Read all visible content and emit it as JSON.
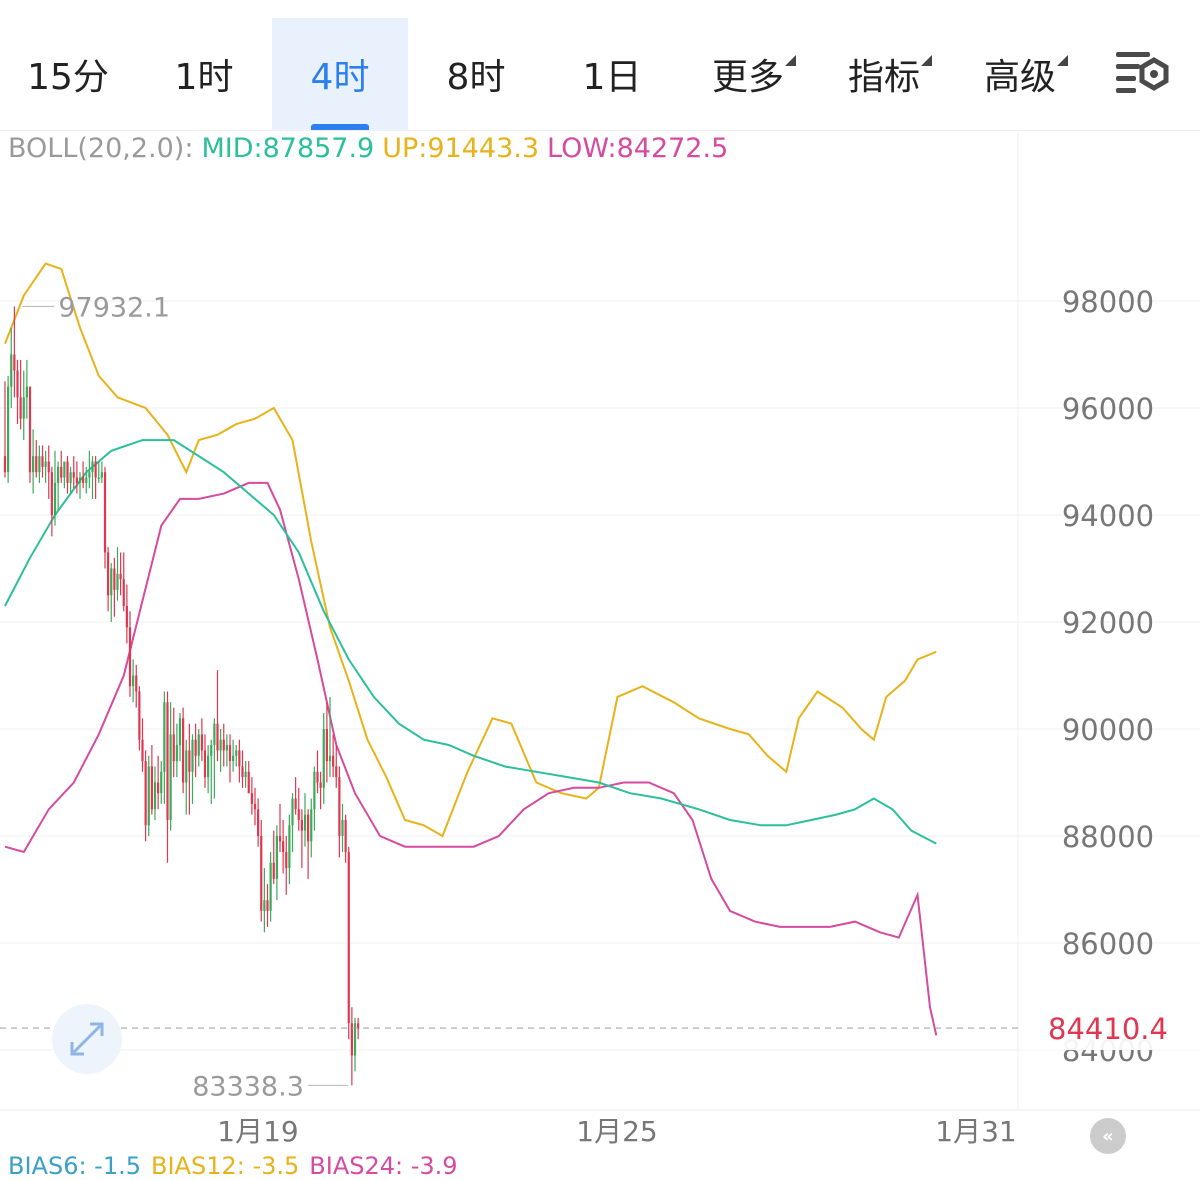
{
  "tabs": [
    {
      "label": "15分",
      "active": false,
      "dropdown": false
    },
    {
      "label": "1时",
      "active": false,
      "dropdown": false
    },
    {
      "label": "4时",
      "active": true,
      "dropdown": false
    },
    {
      "label": "8时",
      "active": false,
      "dropdown": false
    },
    {
      "label": "1日",
      "active": false,
      "dropdown": false
    },
    {
      "label": "更多",
      "active": false,
      "dropdown": true
    },
    {
      "label": "指标",
      "active": false,
      "dropdown": true
    },
    {
      "label": "高级",
      "active": false,
      "dropdown": true
    }
  ],
  "settings_icon": "chart-settings-icon",
  "legend": {
    "name": "BOLL(20,2.0):",
    "mid": "MID:87857.9",
    "up": "UP:91443.3",
    "low": "LOW:84272.5"
  },
  "bias": {
    "b6": "BIAS6: -1.5",
    "b12": "BIAS12: -3.5",
    "b24": "BIAS24: -3.9"
  },
  "colors": {
    "up": "#3aaa5c",
    "down": "#e0364f",
    "mid": "#2bbf9c",
    "upper": "#e8b21a",
    "lower": "#d64a9f",
    "accent": "#2d7ff0",
    "last_price": "#e0364f"
  },
  "chart_data": {
    "type": "candlestick",
    "indicator": "BOLL(20,2.0)",
    "ylim": [
      83000,
      100500
    ],
    "y_ticks": [
      "84000",
      "86000",
      "88000",
      "90000",
      "92000",
      "94000",
      "96000",
      "98000"
    ],
    "x_labels": [
      "1月19",
      "1月25",
      "1月31"
    ],
    "high_marker": "97932.1",
    "low_marker": "83338.3",
    "last_price": "84410.4",
    "last_price_value": 84410.4,
    "candles": [
      [
        95100,
        96500,
        94700,
        94800
      ],
      [
        94800,
        96600,
        94600,
        96400
      ],
      [
        96400,
        97500,
        96000,
        97000
      ],
      [
        97000,
        97900,
        96200,
        96700
      ],
      [
        96700,
        96900,
        95700,
        96200
      ],
      [
        96200,
        96900,
        95600,
        95800
      ],
      [
        95800,
        96700,
        95400,
        96200
      ],
      [
        96200,
        96900,
        95800,
        96400
      ],
      [
        96400,
        96400,
        94600,
        94800
      ],
      [
        94800,
        95600,
        94400,
        95100
      ],
      [
        95100,
        95400,
        94700,
        94800
      ],
      [
        94800,
        95300,
        94600,
        95100
      ],
      [
        95100,
        95300,
        94700,
        94900
      ],
      [
        94900,
        95200,
        94600,
        95000
      ],
      [
        95000,
        95300,
        94300,
        94800
      ],
      [
        94800,
        94900,
        93600,
        94000
      ],
      [
        94000,
        95200,
        93800,
        94600
      ],
      [
        94600,
        95000,
        94100,
        94900
      ],
      [
        94900,
        95200,
        94600,
        94700
      ],
      [
        94700,
        95000,
        94500,
        95000
      ],
      [
        95000,
        95100,
        94400,
        94600
      ],
      [
        94600,
        94900,
        94400,
        94800
      ],
      [
        94800,
        95100,
        94500,
        94700
      ],
      [
        94700,
        95000,
        94400,
        94600
      ],
      [
        94600,
        94800,
        94300,
        94700
      ],
      [
        94700,
        95000,
        94500,
        94600
      ],
      [
        94600,
        94900,
        94400,
        94700
      ],
      [
        94700,
        95200,
        94500,
        94800
      ],
      [
        94800,
        95100,
        94300,
        95000
      ],
      [
        95000,
        95100,
        94300,
        94700
      ],
      [
        94700,
        95000,
        94600,
        94700
      ],
      [
        94700,
        95000,
        94600,
        94800
      ],
      [
        94800,
        94900,
        93000,
        93300
      ],
      [
        93300,
        93400,
        92200,
        92500
      ],
      [
        92500,
        93100,
        92000,
        93000
      ],
      [
        93000,
        93200,
        92100,
        92600
      ],
      [
        92600,
        93400,
        92400,
        92900
      ],
      [
        92900,
        93300,
        92500,
        92800
      ],
      [
        92800,
        93300,
        92200,
        92300
      ],
      [
        92300,
        92700,
        91600,
        91900
      ],
      [
        91900,
        92200,
        90600,
        90800
      ],
      [
        90800,
        91300,
        90500,
        91000
      ],
      [
        91000,
        91200,
        90400,
        90700
      ],
      [
        90700,
        90800,
        89600,
        89800
      ],
      [
        89800,
        90200,
        89200,
        89400
      ],
      [
        89400,
        89600,
        87900,
        88200
      ],
      [
        88200,
        89500,
        88000,
        89300
      ],
      [
        89300,
        89700,
        88400,
        88500
      ],
      [
        88500,
        89300,
        88300,
        89000
      ],
      [
        89000,
        89500,
        88500,
        88800
      ],
      [
        88800,
        89400,
        88600,
        89200
      ],
      [
        89200,
        90700,
        88600,
        90500
      ],
      [
        90500,
        90700,
        87500,
        88300
      ],
      [
        88300,
        90500,
        88100,
        89900
      ],
      [
        89900,
        90400,
        89100,
        89400
      ],
      [
        89400,
        90100,
        89100,
        89700
      ],
      [
        89700,
        90300,
        89400,
        90200
      ],
      [
        90200,
        90400,
        88800,
        89000
      ],
      [
        89000,
        89800,
        88400,
        89600
      ],
      [
        89600,
        90100,
        88400,
        89200
      ],
      [
        89200,
        89900,
        88600,
        89800
      ],
      [
        89800,
        90100,
        89100,
        89500
      ],
      [
        89500,
        90000,
        89300,
        89900
      ],
      [
        89900,
        90200,
        89400,
        89600
      ],
      [
        89600,
        89900,
        88900,
        89100
      ],
      [
        89100,
        89700,
        88800,
        89500
      ],
      [
        89500,
        89800,
        88600,
        89700
      ],
      [
        89700,
        90200,
        88700,
        90100
      ],
      [
        90100,
        91100,
        89400,
        89600
      ],
      [
        89600,
        90000,
        89200,
        89800
      ],
      [
        89800,
        90100,
        89300,
        89600
      ],
      [
        89600,
        89900,
        89300,
        89700
      ],
      [
        89700,
        89900,
        89000,
        89400
      ],
      [
        89400,
        89800,
        89200,
        89500
      ],
      [
        89500,
        89700,
        89300,
        89600
      ],
      [
        89600,
        89800,
        89000,
        89300
      ],
      [
        89300,
        89600,
        88900,
        89100
      ],
      [
        89100,
        89400,
        88900,
        89200
      ],
      [
        89200,
        89400,
        88800,
        88800
      ],
      [
        88800,
        89100,
        88400,
        88600
      ],
      [
        88600,
        88900,
        88200,
        88500
      ],
      [
        88500,
        88700,
        87800,
        88000
      ],
      [
        88000,
        88300,
        86400,
        86600
      ],
      [
        86600,
        87400,
        86200,
        86800
      ],
      [
        86800,
        87100,
        86300,
        86600
      ],
      [
        86600,
        87700,
        86400,
        87500
      ],
      [
        87500,
        88100,
        87100,
        87200
      ],
      [
        87200,
        88200,
        86800,
        88000
      ],
      [
        88000,
        88600,
        87700,
        87900
      ],
      [
        87900,
        88300,
        87300,
        87700
      ],
      [
        87700,
        88000,
        86900,
        87400
      ],
      [
        87400,
        88400,
        87100,
        88200
      ],
      [
        88200,
        88800,
        87700,
        88700
      ],
      [
        88700,
        89100,
        88400,
        88500
      ],
      [
        88500,
        88900,
        88100,
        88300
      ],
      [
        88300,
        88500,
        87400,
        88100
      ],
      [
        88100,
        88800,
        87800,
        88400
      ],
      [
        88400,
        88500,
        87200,
        87900
      ],
      [
        87900,
        88700,
        87600,
        88500
      ],
      [
        88500,
        89300,
        88100,
        89200
      ],
      [
        89200,
        89600,
        88800,
        89000
      ],
      [
        89000,
        89200,
        88500,
        88900
      ],
      [
        88900,
        90300,
        88600,
        90000
      ],
      [
        90000,
        90500,
        89000,
        89400
      ],
      [
        89400,
        90600,
        89100,
        89500
      ],
      [
        89500,
        89900,
        89100,
        89300
      ],
      [
        89300,
        89700,
        88900,
        89100
      ],
      [
        89100,
        89300,
        87600,
        88000
      ],
      [
        88000,
        88600,
        87700,
        88300
      ],
      [
        88300,
        88400,
        87500,
        87700
      ],
      [
        87700,
        87800,
        84200,
        84500
      ],
      [
        84500,
        84800,
        83338,
        83900
      ],
      [
        83900,
        84600,
        83600,
        84500
      ],
      [
        84500,
        84600,
        84200,
        84400
      ]
    ],
    "boll_upper": [
      [
        0,
        97200
      ],
      [
        6,
        98100
      ],
      [
        13,
        98700
      ],
      [
        18,
        98600
      ],
      [
        24,
        97500
      ],
      [
        30,
        96600
      ],
      [
        36,
        96200
      ],
      [
        45,
        96000
      ],
      [
        52,
        95500
      ],
      [
        58,
        94800
      ],
      [
        62,
        95400
      ],
      [
        68,
        95500
      ],
      [
        74,
        95700
      ],
      [
        80,
        95800
      ],
      [
        86,
        96000
      ],
      [
        92,
        95400
      ],
      [
        98,
        93500
      ],
      [
        104,
        91900
      ],
      [
        110,
        90900
      ],
      [
        116,
        89800
      ],
      [
        122,
        89100
      ],
      [
        128,
        88300
      ],
      [
        134,
        88200
      ],
      [
        140,
        88000
      ],
      [
        148,
        89200
      ],
      [
        156,
        90200
      ],
      [
        162,
        90100
      ],
      [
        170,
        89000
      ],
      [
        178,
        88800
      ],
      [
        186,
        88700
      ],
      [
        190,
        88900
      ],
      [
        196,
        90600
      ],
      [
        204,
        90800
      ],
      [
        214,
        90500
      ],
      [
        222,
        90200
      ],
      [
        232,
        90000
      ],
      [
        238,
        89900
      ],
      [
        244,
        89500
      ],
      [
        250,
        89200
      ],
      [
        254,
        90200
      ],
      [
        260,
        90700
      ],
      [
        268,
        90400
      ],
      [
        274,
        90000
      ],
      [
        278,
        89800
      ],
      [
        282,
        90600
      ],
      [
        288,
        90900
      ],
      [
        292,
        91300
      ],
      [
        298,
        91443
      ]
    ],
    "boll_mid": [
      [
        0,
        92300
      ],
      [
        8,
        93200
      ],
      [
        16,
        94000
      ],
      [
        26,
        94800
      ],
      [
        34,
        95200
      ],
      [
        44,
        95400
      ],
      [
        54,
        95400
      ],
      [
        62,
        95100
      ],
      [
        70,
        94800
      ],
      [
        78,
        94400
      ],
      [
        86,
        94000
      ],
      [
        94,
        93300
      ],
      [
        102,
        92200
      ],
      [
        110,
        91300
      ],
      [
        118,
        90600
      ],
      [
        126,
        90100
      ],
      [
        134,
        89800
      ],
      [
        142,
        89700
      ],
      [
        150,
        89500
      ],
      [
        160,
        89300
      ],
      [
        170,
        89200
      ],
      [
        180,
        89100
      ],
      [
        190,
        89000
      ],
      [
        200,
        88800
      ],
      [
        210,
        88700
      ],
      [
        222,
        88500
      ],
      [
        232,
        88300
      ],
      [
        242,
        88200
      ],
      [
        250,
        88200
      ],
      [
        258,
        88300
      ],
      [
        266,
        88400
      ],
      [
        272,
        88500
      ],
      [
        278,
        88700
      ],
      [
        284,
        88500
      ],
      [
        290,
        88100
      ],
      [
        298,
        87858
      ]
    ],
    "boll_lower": [
      [
        0,
        87800
      ],
      [
        6,
        87700
      ],
      [
        14,
        88500
      ],
      [
        22,
        89000
      ],
      [
        30,
        89900
      ],
      [
        38,
        91000
      ],
      [
        44,
        92400
      ],
      [
        50,
        93800
      ],
      [
        56,
        94300
      ],
      [
        62,
        94300
      ],
      [
        70,
        94400
      ],
      [
        78,
        94600
      ],
      [
        84,
        94600
      ],
      [
        88,
        94100
      ],
      [
        94,
        92800
      ],
      [
        100,
        91300
      ],
      [
        106,
        89700
      ],
      [
        112,
        88800
      ],
      [
        120,
        88000
      ],
      [
        128,
        87800
      ],
      [
        136,
        87800
      ],
      [
        142,
        87800
      ],
      [
        150,
        87800
      ],
      [
        158,
        88000
      ],
      [
        166,
        88500
      ],
      [
        174,
        88800
      ],
      [
        182,
        88900
      ],
      [
        190,
        88900
      ],
      [
        198,
        89000
      ],
      [
        206,
        89000
      ],
      [
        214,
        88800
      ],
      [
        220,
        88300
      ],
      [
        226,
        87200
      ],
      [
        232,
        86600
      ],
      [
        240,
        86400
      ],
      [
        248,
        86300
      ],
      [
        256,
        86300
      ],
      [
        264,
        86300
      ],
      [
        272,
        86400
      ],
      [
        280,
        86200
      ],
      [
        286,
        86100
      ],
      [
        292,
        86900
      ],
      [
        296,
        84800
      ],
      [
        298,
        84272
      ]
    ]
  }
}
